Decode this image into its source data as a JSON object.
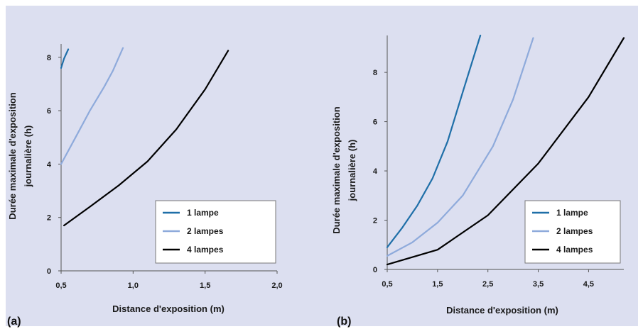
{
  "chart_data": [
    {
      "type": "line",
      "panel_label": "(a)",
      "xlabel": "Distance d'exposition (m)",
      "ylabel": "Durée maximale d'exposition journalière (h)",
      "ylabel_lines": [
        "Durée maximale d'exposition",
        "journalière (h)"
      ],
      "xlim": [
        0.5,
        2.0
      ],
      "ylim": [
        0,
        8.5
      ],
      "x_ticks": [
        0.5,
        1.0,
        1.5,
        2.0
      ],
      "x_tick_labels": [
        "0,5",
        "1,0",
        "1,5",
        "2,0"
      ],
      "y_ticks": [
        0,
        2,
        4,
        6,
        8
      ],
      "y_tick_labels": [
        "0",
        "2",
        "4",
        "6",
        "8"
      ],
      "legend_position": "bottom-right",
      "series": [
        {
          "name": "1 lampe",
          "color": "#1f6fa8",
          "x": [
            0.5,
            0.52,
            0.55
          ],
          "y": [
            7.6,
            7.95,
            8.3
          ]
        },
        {
          "name": "2 lampes",
          "color": "#8eaadb",
          "x": [
            0.5,
            0.6,
            0.7,
            0.8,
            0.86,
            0.93
          ],
          "y": [
            4.0,
            5.0,
            6.0,
            6.9,
            7.5,
            8.35
          ]
        },
        {
          "name": "4 lampes",
          "color": "#000000",
          "x": [
            0.52,
            0.7,
            0.9,
            1.1,
            1.3,
            1.5,
            1.66
          ],
          "y": [
            1.7,
            2.4,
            3.2,
            4.1,
            5.3,
            6.8,
            8.25
          ]
        }
      ]
    },
    {
      "type": "line",
      "panel_label": "(b)",
      "xlabel": "Distance d'exposition (m)",
      "ylabel": "Durée maximale d'exposition journalière (h)",
      "ylabel_lines": [
        "Durée maximale d'exposition",
        "journalière (h)"
      ],
      "xlim": [
        0.5,
        5.2
      ],
      "ylim": [
        0,
        9.5
      ],
      "x_ticks": [
        0.5,
        1.5,
        2.5,
        3.5,
        4.5
      ],
      "x_tick_labels": [
        "0,5",
        "1,5",
        "2,5",
        "3,5",
        "4,5"
      ],
      "y_ticks": [
        0,
        2,
        4,
        6,
        8
      ],
      "y_tick_labels": [
        "0",
        "2",
        "4",
        "6",
        "8"
      ],
      "legend_position": "bottom-right",
      "series": [
        {
          "name": "1 lampe",
          "color": "#1f6fa8",
          "x": [
            0.5,
            0.8,
            1.1,
            1.4,
            1.7,
            2.0,
            2.35
          ],
          "y": [
            0.9,
            1.7,
            2.6,
            3.7,
            5.2,
            7.2,
            9.5
          ]
        },
        {
          "name": "2 lampes",
          "color": "#8eaadb",
          "x": [
            0.5,
            1.0,
            1.5,
            2.0,
            2.6,
            3.0,
            3.4
          ],
          "y": [
            0.55,
            1.1,
            1.9,
            3.0,
            5.0,
            6.9,
            9.4
          ]
        },
        {
          "name": "4 lampes",
          "color": "#000000",
          "x": [
            0.5,
            1.5,
            2.5,
            3.5,
            4.5,
            5.2
          ],
          "y": [
            0.2,
            0.8,
            2.2,
            4.3,
            7.0,
            9.4
          ]
        }
      ]
    }
  ]
}
